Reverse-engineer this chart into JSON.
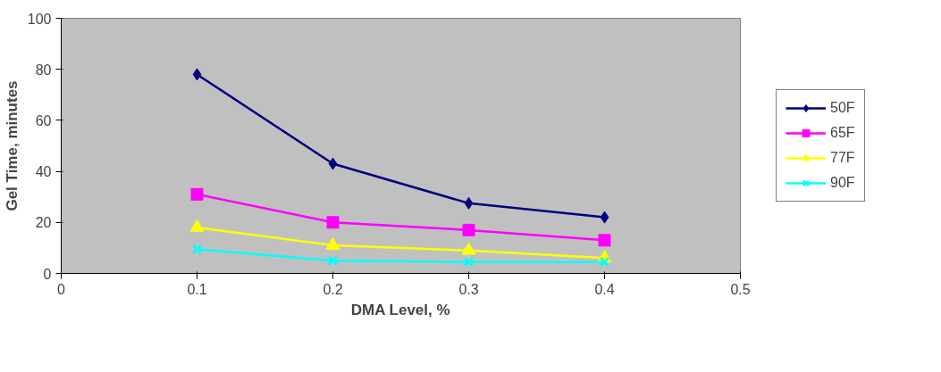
{
  "chart_data": {
    "type": "line",
    "xlabel": "DMA Level, %",
    "ylabel": "Gel Time, minutes",
    "x": [
      0.1,
      0.2,
      0.3,
      0.4
    ],
    "series": [
      {
        "name": "50F",
        "color": "#000080",
        "marker": "diamond",
        "values": [
          78,
          43,
          27.5,
          22
        ]
      },
      {
        "name": "65F",
        "color": "#ff00ff",
        "marker": "square",
        "values": [
          31,
          20,
          17,
          13
        ]
      },
      {
        "name": "77F",
        "color": "#ffff00",
        "marker": "triangle",
        "values": [
          18,
          11,
          9,
          6
        ]
      },
      {
        "name": "90F",
        "color": "#00ffff",
        "marker": "cross",
        "values": [
          9.5,
          5,
          4.5,
          4.5
        ]
      }
    ],
    "xlim": [
      0,
      0.5
    ],
    "xticks": [
      0,
      0.1,
      0.2,
      0.3,
      0.4,
      0.5
    ],
    "ylim": [
      0,
      100
    ],
    "yticks": [
      0,
      20,
      40,
      60,
      80,
      100
    ],
    "grid": false,
    "legend": "right"
  }
}
